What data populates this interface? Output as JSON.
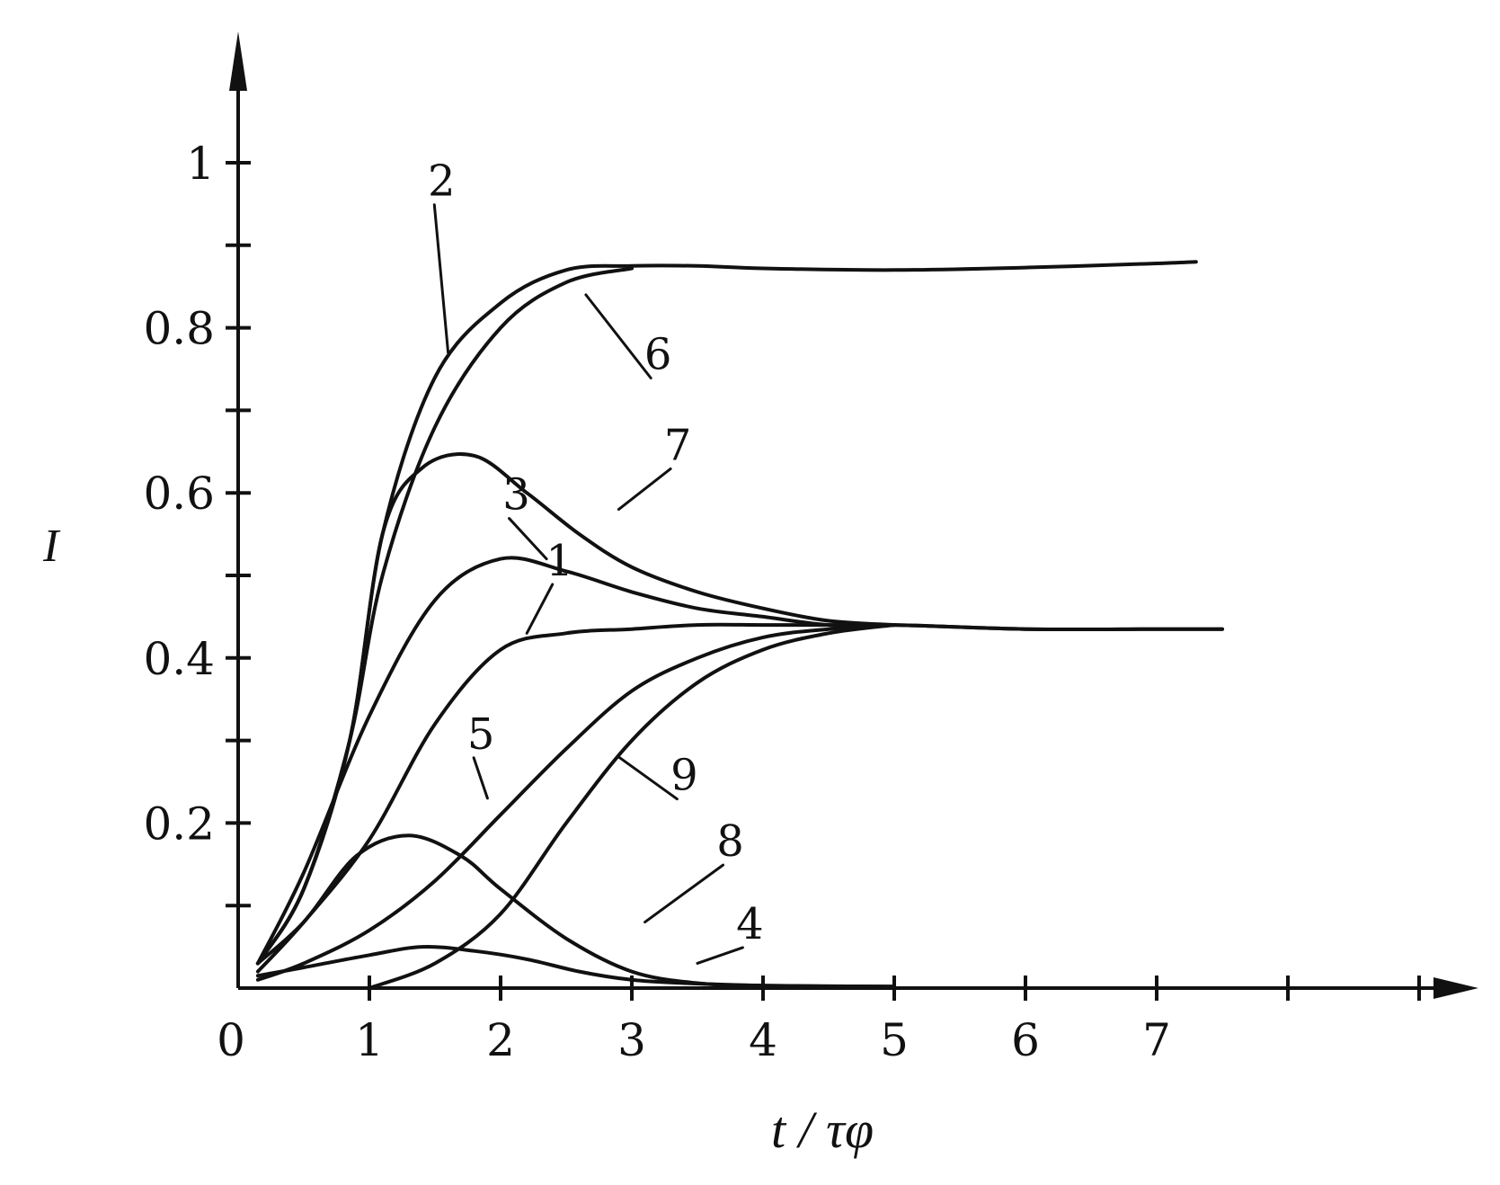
{
  "chart_data": {
    "type": "line",
    "title": "",
    "xlabel": "t / τφ",
    "ylabel": "I",
    "xlim": [
      0,
      9.6
    ],
    "ylim": [
      0,
      1.15
    ],
    "x_ticks": [
      "0",
      "1",
      "2",
      "3",
      "4",
      "5",
      "6",
      "7"
    ],
    "y_ticks": [
      "0.2",
      "0.4",
      "0.6",
      "0.8",
      "1"
    ],
    "grid": false,
    "legend": "none",
    "series": [
      {
        "name": "1",
        "x": [
          0.15,
          0.5,
          1.0,
          1.5,
          2.0,
          2.5,
          3.0,
          3.5,
          4.0,
          4.5,
          5.0,
          6.0,
          7.0,
          7.5
        ],
        "y": [
          0.02,
          0.08,
          0.18,
          0.32,
          0.41,
          0.43,
          0.435,
          0.44,
          0.44,
          0.44,
          0.44,
          0.435,
          0.435,
          0.435
        ]
      },
      {
        "name": "2",
        "x": [
          0.15,
          0.5,
          0.85,
          1.1,
          1.5,
          2.0,
          2.5,
          3.0,
          3.5,
          4.0,
          5.0,
          6.0,
          7.0,
          7.3
        ],
        "y": [
          0.03,
          0.12,
          0.3,
          0.55,
          0.74,
          0.83,
          0.87,
          0.875,
          0.875,
          0.872,
          0.87,
          0.873,
          0.878,
          0.88
        ]
      },
      {
        "name": "3",
        "x": [
          0.15,
          0.5,
          1.0,
          1.5,
          2.0,
          2.5,
          3.0,
          3.5,
          4.0,
          4.5,
          5.0,
          6.0,
          7.0,
          7.5
        ],
        "y": [
          0.03,
          0.14,
          0.33,
          0.47,
          0.52,
          0.505,
          0.48,
          0.46,
          0.45,
          0.44,
          0.44,
          0.435,
          0.435,
          0.435
        ]
      },
      {
        "name": "4",
        "x": [
          0.15,
          0.5,
          1.0,
          1.4,
          1.8,
          2.2,
          2.6,
          3.0,
          3.4,
          4.0,
          5.0
        ],
        "y": [
          0.015,
          0.025,
          0.04,
          0.05,
          0.045,
          0.035,
          0.02,
          0.01,
          0.006,
          0.003,
          0.002
        ]
      },
      {
        "name": "5",
        "x": [
          0.15,
          0.5,
          1.0,
          1.5,
          2.0,
          2.5,
          3.0,
          3.5,
          4.0,
          4.5,
          5.0
        ],
        "y": [
          0.01,
          0.03,
          0.07,
          0.13,
          0.21,
          0.29,
          0.36,
          0.4,
          0.425,
          0.435,
          0.44
        ]
      },
      {
        "name": "6",
        "x": [
          0.15,
          0.5,
          0.85,
          1.1,
          1.5,
          2.0,
          2.5,
          3.0
        ],
        "y": [
          0.03,
          0.12,
          0.3,
          0.5,
          0.68,
          0.8,
          0.855,
          0.872
        ]
      },
      {
        "name": "7",
        "x": [
          0.15,
          0.5,
          0.85,
          1.1,
          1.4,
          1.8,
          2.2,
          2.6,
          3.0,
          3.5,
          4.0,
          4.5,
          5.0
        ],
        "y": [
          0.03,
          0.12,
          0.3,
          0.55,
          0.63,
          0.645,
          0.6,
          0.55,
          0.51,
          0.48,
          0.46,
          0.445,
          0.44
        ]
      },
      {
        "name": "8",
        "x": [
          0.15,
          0.5,
          0.9,
          1.3,
          1.7,
          2.0,
          2.5,
          3.0,
          3.5,
          4.0,
          5.0
        ],
        "y": [
          0.03,
          0.08,
          0.16,
          0.185,
          0.16,
          0.12,
          0.06,
          0.02,
          0.006,
          0.003,
          0.002
        ]
      },
      {
        "name": "9",
        "x": [
          1.0,
          1.5,
          2.0,
          2.5,
          3.0,
          3.5,
          4.0,
          4.5,
          5.0
        ],
        "y": [
          0.0,
          0.03,
          0.09,
          0.2,
          0.3,
          0.37,
          0.41,
          0.43,
          0.44
        ]
      }
    ]
  }
}
